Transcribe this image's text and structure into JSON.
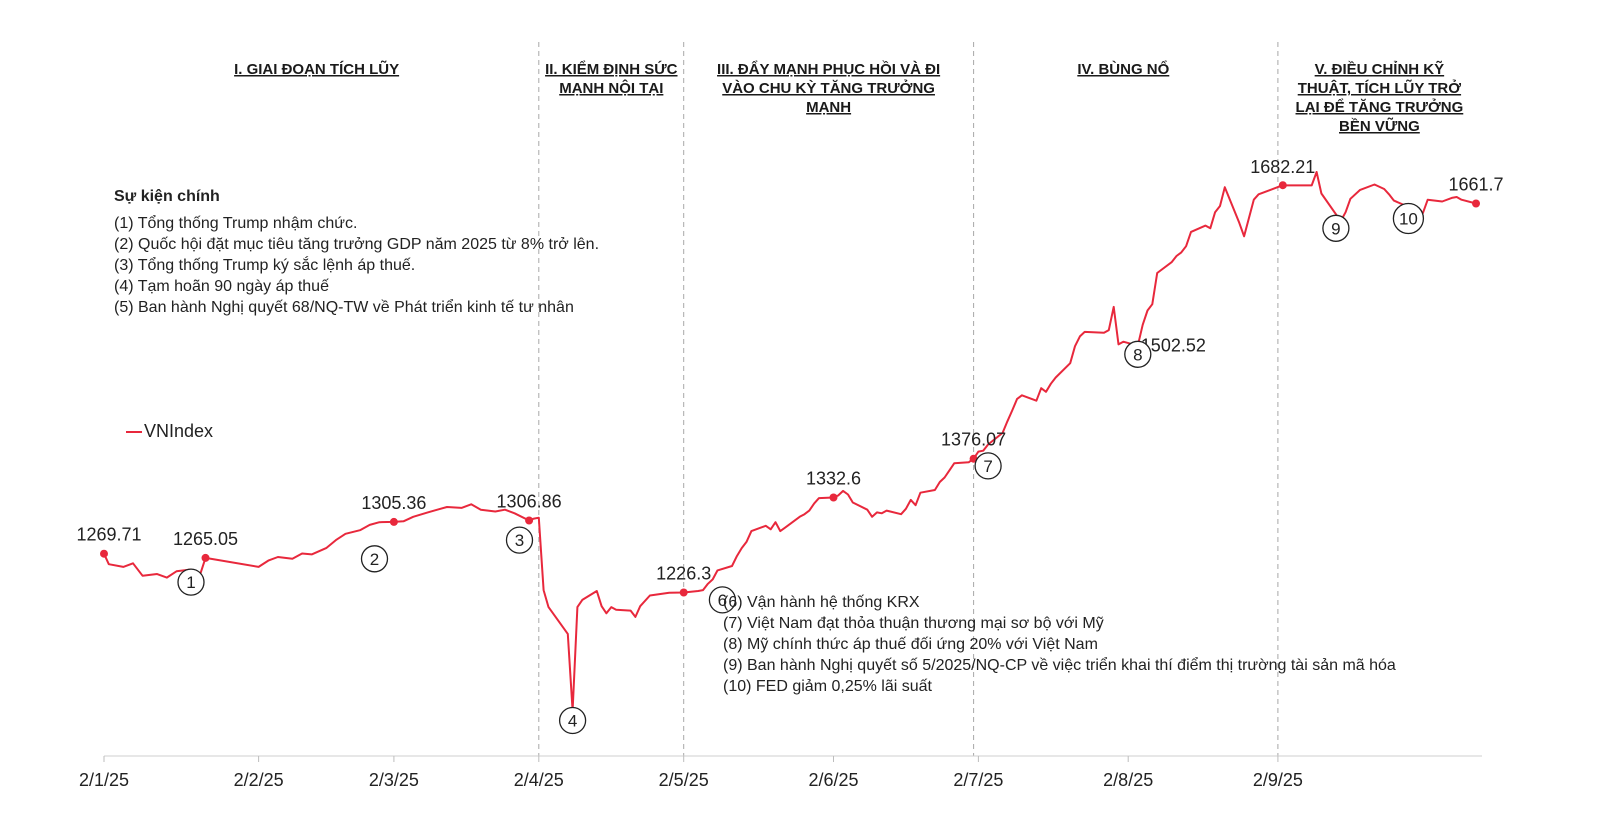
{
  "chart_data": {
    "type": "line",
    "series": [
      {
        "name": "VNIndex",
        "color": "#e8283c",
        "points": [
          [
            "2025-01-02",
            1269.71
          ],
          [
            "2025-01-03",
            1258
          ],
          [
            "2025-01-06",
            1255
          ],
          [
            "2025-01-08",
            1259
          ],
          [
            "2025-01-10",
            1245
          ],
          [
            "2025-01-13",
            1247
          ],
          [
            "2025-01-15",
            1243
          ],
          [
            "2025-01-17",
            1250
          ],
          [
            "2025-01-20",
            1252
          ],
          [
            "2025-01-22",
            1248
          ],
          [
            "2025-01-23",
            1265.05
          ],
          [
            "2025-02-03",
            1255
          ],
          [
            "2025-02-05",
            1262
          ],
          [
            "2025-02-07",
            1266
          ],
          [
            "2025-02-10",
            1264
          ],
          [
            "2025-02-12",
            1270
          ],
          [
            "2025-02-14",
            1269
          ],
          [
            "2025-02-17",
            1276
          ],
          [
            "2025-02-19",
            1285
          ],
          [
            "2025-02-21",
            1292
          ],
          [
            "2025-02-24",
            1296
          ],
          [
            "2025-02-26",
            1302
          ],
          [
            "2025-02-28",
            1305
          ],
          [
            "2025-03-03",
            1305.36
          ],
          [
            "2025-03-05",
            1306
          ],
          [
            "2025-03-07",
            1311
          ],
          [
            "2025-03-10",
            1316
          ],
          [
            "2025-03-12",
            1319
          ],
          [
            "2025-03-14",
            1322
          ],
          [
            "2025-03-17",
            1321
          ],
          [
            "2025-03-19",
            1325
          ],
          [
            "2025-03-21",
            1319
          ],
          [
            "2025-03-24",
            1317
          ],
          [
            "2025-03-26",
            1319
          ],
          [
            "2025-03-28",
            1315
          ],
          [
            "2025-03-31",
            1306.86
          ],
          [
            "2025-04-01",
            1309
          ],
          [
            "2025-04-02",
            1310
          ],
          [
            "2025-04-03",
            1229
          ],
          [
            "2025-04-04",
            1210
          ],
          [
            "2025-04-08",
            1180
          ],
          [
            "2025-04-09",
            1094
          ],
          [
            "2025-04-10",
            1210
          ],
          [
            "2025-04-11",
            1218
          ],
          [
            "2025-04-14",
            1228
          ],
          [
            "2025-04-15",
            1211
          ],
          [
            "2025-04-16",
            1203
          ],
          [
            "2025-04-17",
            1210
          ],
          [
            "2025-04-18",
            1207
          ],
          [
            "2025-04-21",
            1206
          ],
          [
            "2025-04-22",
            1199
          ],
          [
            "2025-04-23",
            1211
          ],
          [
            "2025-04-25",
            1223
          ],
          [
            "2025-04-29",
            1226
          ],
          [
            "2025-05-02",
            1226.3
          ],
          [
            "2025-05-05",
            1228
          ],
          [
            "2025-05-06",
            1229
          ],
          [
            "2025-05-07",
            1236
          ],
          [
            "2025-05-08",
            1241
          ],
          [
            "2025-05-09",
            1251
          ],
          [
            "2025-05-12",
            1256
          ],
          [
            "2025-05-13",
            1267
          ],
          [
            "2025-05-14",
            1276
          ],
          [
            "2025-05-15",
            1283
          ],
          [
            "2025-05-16",
            1295
          ],
          [
            "2025-05-19",
            1301
          ],
          [
            "2025-05-20",
            1297
          ],
          [
            "2025-05-21",
            1305
          ],
          [
            "2025-05-22",
            1295
          ],
          [
            "2025-05-23",
            1299
          ],
          [
            "2025-05-26",
            1311
          ],
          [
            "2025-05-27",
            1314
          ],
          [
            "2025-05-28",
            1318
          ],
          [
            "2025-05-29",
            1326
          ],
          [
            "2025-05-30",
            1332
          ],
          [
            "2025-06-02",
            1332.6
          ],
          [
            "2025-06-03",
            1335
          ],
          [
            "2025-06-04",
            1340
          ],
          [
            "2025-06-05",
            1336
          ],
          [
            "2025-06-06",
            1327
          ],
          [
            "2025-06-09",
            1319
          ],
          [
            "2025-06-10",
            1311
          ],
          [
            "2025-06-11",
            1316
          ],
          [
            "2025-06-12",
            1315
          ],
          [
            "2025-06-13",
            1318
          ],
          [
            "2025-06-16",
            1314
          ],
          [
            "2025-06-17",
            1320
          ],
          [
            "2025-06-18",
            1330
          ],
          [
            "2025-06-19",
            1324
          ],
          [
            "2025-06-20",
            1338
          ],
          [
            "2025-06-23",
            1341
          ],
          [
            "2025-06-24",
            1350
          ],
          [
            "2025-06-25",
            1355
          ],
          [
            "2025-06-26",
            1363
          ],
          [
            "2025-06-27",
            1371
          ],
          [
            "2025-06-30",
            1372
          ],
          [
            "2025-07-01",
            1376.07
          ],
          [
            "2025-07-02",
            1384
          ],
          [
            "2025-07-03",
            1385
          ],
          [
            "2025-07-04",
            1392
          ],
          [
            "2025-07-07",
            1405
          ],
          [
            "2025-07-08",
            1418
          ],
          [
            "2025-07-09",
            1430
          ],
          [
            "2025-07-10",
            1443
          ],
          [
            "2025-07-11",
            1447
          ],
          [
            "2025-07-14",
            1441
          ],
          [
            "2025-07-15",
            1455
          ],
          [
            "2025-07-16",
            1451
          ],
          [
            "2025-07-17",
            1460
          ],
          [
            "2025-07-18",
            1467
          ],
          [
            "2025-07-21",
            1483
          ],
          [
            "2025-07-22",
            1502
          ],
          [
            "2025-07-23",
            1513
          ],
          [
            "2025-07-24",
            1518
          ],
          [
            "2025-07-28",
            1517
          ],
          [
            "2025-07-29",
            1520
          ],
          [
            "2025-07-30",
            1546
          ],
          [
            "2025-07-31",
            1504
          ],
          [
            "2025-08-01",
            1507
          ],
          [
            "2025-08-04",
            1502.52
          ],
          [
            "2025-08-05",
            1526
          ],
          [
            "2025-08-06",
            1542
          ],
          [
            "2025-08-07",
            1549
          ],
          [
            "2025-08-08",
            1584
          ],
          [
            "2025-08-11",
            1596
          ],
          [
            "2025-08-12",
            1603
          ],
          [
            "2025-08-13",
            1607
          ],
          [
            "2025-08-14",
            1614
          ],
          [
            "2025-08-15",
            1630
          ],
          [
            "2025-08-18",
            1637
          ],
          [
            "2025-08-19",
            1634
          ],
          [
            "2025-08-20",
            1652
          ],
          [
            "2025-08-21",
            1659
          ],
          [
            "2025-08-22",
            1680
          ],
          [
            "2025-08-25",
            1640
          ],
          [
            "2025-08-26",
            1625
          ],
          [
            "2025-08-28",
            1666
          ],
          [
            "2025-08-29",
            1672
          ],
          [
            "2025-09-03",
            1682.21
          ],
          [
            "2025-09-04",
            1682
          ],
          [
            "2025-09-09",
            1682
          ],
          [
            "2025-09-10",
            1697
          ],
          [
            "2025-09-11",
            1673
          ],
          [
            "2025-09-15",
            1642
          ],
          [
            "2025-09-16",
            1652
          ],
          [
            "2025-09-17",
            1667
          ],
          [
            "2025-09-19",
            1677
          ],
          [
            "2025-09-22",
            1683
          ],
          [
            "2025-09-24",
            1678
          ],
          [
            "2025-09-25",
            1672
          ],
          [
            "2025-09-26",
            1665
          ],
          [
            "2025-09-29",
            1658
          ],
          [
            "2025-10-01",
            1650
          ],
          [
            "2025-10-02",
            1651
          ],
          [
            "2025-10-03",
            1666
          ],
          [
            "2025-10-06",
            1664
          ],
          [
            "2025-10-08",
            1668
          ],
          [
            "2025-10-09",
            1669
          ],
          [
            "2025-10-10",
            1666
          ],
          [
            "2025-10-13",
            1661.7
          ]
        ]
      }
    ],
    "value_labels": [
      {
        "date": "2025-01-02",
        "text": "1269.71",
        "align": "middle",
        "dx": 5,
        "dy": -13
      },
      {
        "date": "2025-01-23",
        "text": "1265.05",
        "align": "middle",
        "dx": 0,
        "dy": -13
      },
      {
        "date": "2025-03-03",
        "text": "1305.36",
        "align": "middle",
        "dx": 0,
        "dy": -13
      },
      {
        "date": "2025-03-31",
        "text": "1306.86",
        "align": "middle",
        "dx": 0,
        "dy": -13
      },
      {
        "date": "2025-05-02",
        "text": "1226.3",
        "align": "middle",
        "dx": 0,
        "dy": -13
      },
      {
        "date": "2025-06-02",
        "text": "1332.6",
        "align": "middle",
        "dx": 0,
        "dy": -13
      },
      {
        "date": "2025-07-01",
        "text": "1376.07",
        "align": "middle",
        "dx": 0,
        "dy": -13
      },
      {
        "date": "2025-08-04",
        "text": "1502.52",
        "align": "start",
        "dx": 3,
        "dy": 6
      },
      {
        "date": "2025-09-03",
        "text": "1682.21",
        "align": "middle",
        "dx": 0,
        "dy": -12
      },
      {
        "date": "2025-10-13",
        "text": "1661.7",
        "align": "middle",
        "dx": 0,
        "dy": -13
      }
    ],
    "event_markers": [
      {
        "num": "1",
        "date": "2025-01-20",
        "value": 1238
      },
      {
        "num": "2",
        "date": "2025-02-27",
        "value": 1264
      },
      {
        "num": "3",
        "date": "2025-03-29",
        "value": 1285
      },
      {
        "num": "4",
        "date": "2025-04-09",
        "value": 1083
      },
      {
        "num": "6",
        "date": "2025-05-10",
        "value": 1218
      },
      {
        "num": "7",
        "date": "2025-07-04",
        "value": 1368
      },
      {
        "num": "8",
        "date": "2025-08-04",
        "value": 1493
      },
      {
        "num": "9",
        "date": "2025-09-14",
        "value": 1634
      },
      {
        "num": "10",
        "date": "2025-09-29",
        "value": 1645
      }
    ],
    "x_ticks": [
      {
        "date": "2025-01-02",
        "label": "2/1/25"
      },
      {
        "date": "2025-02-03",
        "label": "2/2/25"
      },
      {
        "date": "2025-03-03",
        "label": "2/3/25"
      },
      {
        "date": "2025-04-02",
        "label": "2/4/25"
      },
      {
        "date": "2025-05-02",
        "label": "2/5/25"
      },
      {
        "date": "2025-06-02",
        "label": "2/6/25"
      },
      {
        "date": "2025-07-02",
        "label": "2/7/25"
      },
      {
        "date": "2025-08-02",
        "label": "2/8/25"
      },
      {
        "date": "2025-09-02",
        "label": "2/9/25"
      }
    ],
    "x_range": [
      "2025-01-02",
      "2025-10-13"
    ],
    "y_range": [
      1050,
      1800
    ],
    "phase_dividers": [
      "2025-04-02",
      "2025-05-02",
      "2025-07-01",
      "2025-09-02"
    ],
    "phases": [
      {
        "lines": [
          "I. GIAI ĐOẠN TÍCH LŨY"
        ],
        "center": "2025-02-15"
      },
      {
        "lines": [
          "II. KIỂM ĐỊNH SỨC",
          "MẠNH NỘI TẠI"
        ],
        "center": "2025-04-17"
      },
      {
        "lines": [
          "III. ĐẨY MẠNH PHỤC HỒI VÀ ĐI",
          "VÀO CHU KỲ TĂNG TRƯỞNG",
          "MẠNH"
        ],
        "center": "2025-06-01"
      },
      {
        "lines": [
          "IV. BÙNG NỔ"
        ],
        "center": "2025-08-01"
      },
      {
        "lines": [
          "V. ĐIỀU CHỈNH KỸ",
          "THUẬT, TÍCH LŨY TRỞ",
          "LẠI ĐỂ TĂNG TRƯỞNG",
          "BỀN VỮNG"
        ],
        "center": "2025-09-23"
      }
    ],
    "grid": false,
    "legend_position": "left-middle"
  },
  "events_box_1": {
    "title": "Sự kiện chính",
    "items": [
      "(1) Tổng thống Trump nhậm chức.",
      "(2) Quốc hội đặt mục tiêu tăng trưởng GDP năm 2025 từ 8% trở lên.",
      "(3) Tổng thống Trump ký sắc lệnh áp thuế.",
      "(4) Tạm hoãn 90 ngày áp thuế",
      "(5) Ban hành Nghị quyết 68/NQ-TW về Phát triển kinh tế tư nhân"
    ]
  },
  "events_box_2": {
    "items": [
      "(6) Vận hành hệ thống KRX",
      "(7) Việt Nam đạt thỏa thuận thương mại sơ bộ với Mỹ",
      "(8) Mỹ chính thức áp thuế đối ứng 20% với Việt Nam",
      "(9) Ban hành Nghị quyết số 5/2025/NQ-CP về việc triển khai thí điểm thị trường tài sản mã hóa",
      "(10) FED giảm 0,25% lãi suất"
    ]
  },
  "legend": {
    "label": "VNIndex",
    "color": "#e8283c"
  }
}
